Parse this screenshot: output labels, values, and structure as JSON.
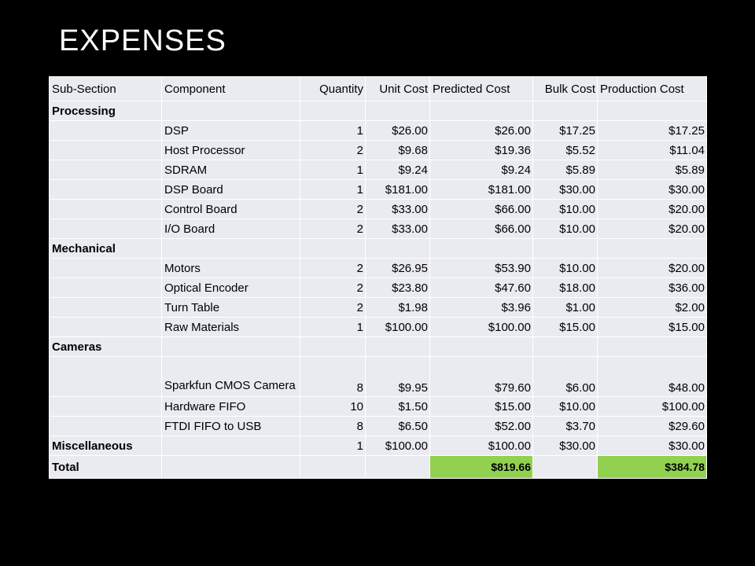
{
  "slide": {
    "title": "EXPENSES"
  },
  "table": {
    "headers": [
      "Sub-Section",
      "Component",
      "Quantity",
      "Unit Cost",
      "Predicted Cost",
      "Bulk Cost",
      "Production Cost"
    ],
    "rows": [
      [
        "Processing",
        "",
        "",
        "",
        "",
        "",
        ""
      ],
      [
        "",
        "DSP",
        "1",
        "$26.00",
        "$26.00",
        "$17.25",
        "$17.25"
      ],
      [
        "",
        "Host Processor",
        "2",
        "$9.68",
        "$19.36",
        "$5.52",
        "$11.04"
      ],
      [
        "",
        "SDRAM",
        "1",
        "$9.24",
        "$9.24",
        "$5.89",
        "$5.89"
      ],
      [
        "",
        "DSP Board",
        "1",
        "$181.00",
        "$181.00",
        "$30.00",
        "$30.00"
      ],
      [
        "",
        "Control Board",
        "2",
        "$33.00",
        "$66.00",
        "$10.00",
        "$20.00"
      ],
      [
        "",
        "I/O Board",
        "2",
        "$33.00",
        "$66.00",
        "$10.00",
        "$20.00"
      ],
      [
        "Mechanical",
        "",
        "",
        "",
        "",
        "",
        ""
      ],
      [
        "",
        "Motors",
        "2",
        "$26.95",
        "$53.90",
        "$10.00",
        "$20.00"
      ],
      [
        "",
        "Optical Encoder",
        "2",
        "$23.80",
        "$47.60",
        "$18.00",
        "$36.00"
      ],
      [
        "",
        "Turn Table",
        "2",
        "$1.98",
        "$3.96",
        "$1.00",
        "$2.00"
      ],
      [
        "",
        "Raw Materials",
        "1",
        "$100.00",
        "$100.00",
        "$15.00",
        "$15.00"
      ],
      [
        "Cameras",
        "",
        "",
        "",
        "",
        "",
        ""
      ],
      [
        "",
        "Sparkfun CMOS Camera",
        "8",
        "$9.95",
        "$79.60",
        "$6.00",
        "$48.00"
      ],
      [
        "",
        "Hardware FIFO",
        "10",
        "$1.50",
        "$15.00",
        "$10.00",
        "$100.00"
      ],
      [
        "",
        "FTDI FIFO to USB",
        "8",
        "$6.50",
        "$52.00",
        "$3.70",
        "$29.60"
      ],
      [
        "Miscellaneous",
        "",
        "1",
        "$100.00",
        "$100.00",
        "$30.00",
        "$30.00"
      ],
      [
        "Total",
        "",
        "",
        "",
        "$819.66",
        "",
        "$384.78"
      ]
    ]
  },
  "colors": {
    "background": "#000000",
    "title": "#ffffff",
    "cell": "#e9ebf1",
    "total_highlight": "#92d050"
  }
}
